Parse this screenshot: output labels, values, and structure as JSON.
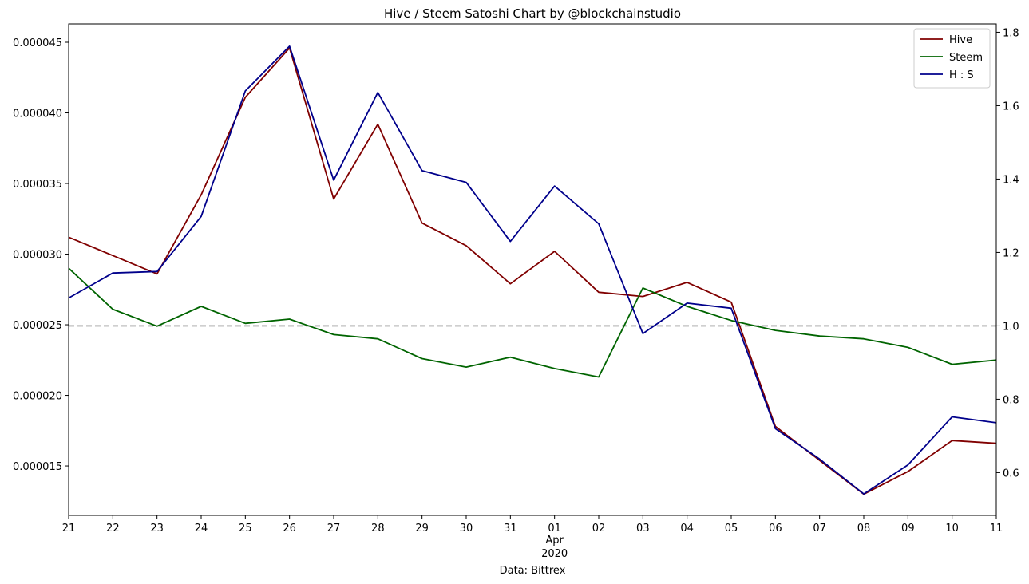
{
  "chart_data": {
    "type": "line",
    "title": "Hive / Steem Satoshi Chart by @blockchainstudio",
    "xlabel": "Data: Bittrex",
    "x_ticks": [
      "21",
      "22",
      "23",
      "24",
      "25",
      "26",
      "27",
      "28",
      "29",
      "30",
      "31",
      "01",
      "02",
      "03",
      "04",
      "05",
      "06",
      "07",
      "08",
      "09",
      "10",
      "11"
    ],
    "x_tick_extra": {
      "month": "Apr",
      "year": "2020"
    },
    "x_dates": [
      "2020-03-21",
      "2020-03-22",
      "2020-03-23",
      "2020-03-24",
      "2020-03-25",
      "2020-03-26",
      "2020-03-27",
      "2020-03-28",
      "2020-03-29",
      "2020-03-30",
      "2020-03-31",
      "2020-04-01",
      "2020-04-02",
      "2020-04-03",
      "2020-04-04",
      "2020-04-05",
      "2020-04-06",
      "2020-04-07",
      "2020-04-08",
      "2020-04-09",
      "2020-04-10",
      "2020-04-11"
    ],
    "left_axis": {
      "ylim": [
        1.15e-05,
        4.63e-05
      ],
      "ticks": [
        "0.000015",
        "0.000020",
        "0.000025",
        "0.000030",
        "0.000035",
        "0.000040",
        "0.000045"
      ],
      "tick_values": [
        1.5e-05,
        2e-05,
        2.5e-05,
        3e-05,
        3.5e-05,
        4e-05,
        4.5e-05
      ]
    },
    "right_axis": {
      "ylim": [
        0.4835,
        1.8227
      ],
      "ticks": [
        "0.6",
        "0.8",
        "1.0",
        "1.2",
        "1.4",
        "1.6",
        "1.8"
      ],
      "tick_values": [
        0.6,
        0.8,
        1.0,
        1.2,
        1.4,
        1.6,
        1.8
      ]
    },
    "reference_line": {
      "axis": "right",
      "value": 1.0,
      "style": "dashed",
      "color": "#808080"
    },
    "series": [
      {
        "name": "Hive",
        "axis": "left",
        "color": "#800000",
        "values": [
          3.12e-05,
          2.99e-05,
          2.86e-05,
          3.42e-05,
          4.11e-05,
          4.46e-05,
          3.39e-05,
          3.92e-05,
          3.22e-05,
          3.06e-05,
          2.79e-05,
          3.02e-05,
          2.73e-05,
          2.7e-05,
          2.8e-05,
          2.66e-05,
          1.78e-05,
          1.54e-05,
          1.3e-05,
          1.46e-05,
          1.68e-05,
          1.66e-05
        ]
      },
      {
        "name": "Steem",
        "axis": "left",
        "color": "#006400",
        "values": [
          2.9e-05,
          2.61e-05,
          2.49e-05,
          2.63e-05,
          2.51e-05,
          2.54e-05,
          2.43e-05,
          2.4e-05,
          2.26e-05,
          2.2e-05,
          2.27e-05,
          2.19e-05,
          2.13e-05,
          2.76e-05,
          2.63e-05,
          2.53e-05,
          2.46e-05,
          2.42e-05,
          2.4e-05,
          2.34e-05,
          2.22e-05,
          2.25e-05
        ]
      },
      {
        "name": "H : S",
        "axis": "right",
        "color": "#00008b",
        "values": [
          1.076,
          1.144,
          1.148,
          1.298,
          1.64,
          1.762,
          1.397,
          1.636,
          1.423,
          1.391,
          1.23,
          1.381,
          1.278,
          0.979,
          1.062,
          1.048,
          0.72,
          0.637,
          0.542,
          0.621,
          0.752,
          0.736
        ]
      }
    ],
    "legend_position": "top-right",
    "grid": false
  }
}
